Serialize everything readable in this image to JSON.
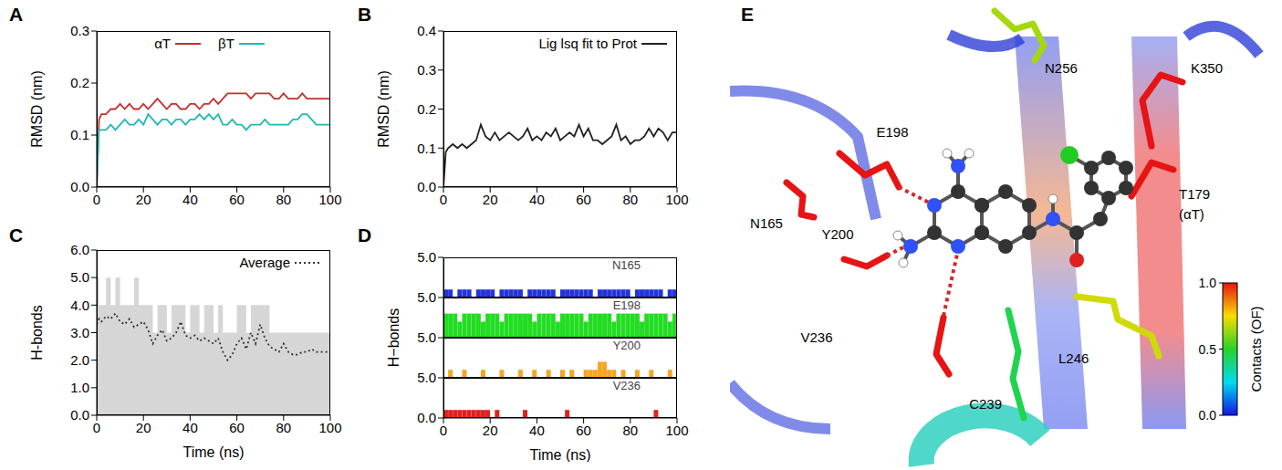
{
  "chart_data": [
    {
      "panel": "A",
      "type": "line",
      "y_label": "RMSD (nm)",
      "legend": "top",
      "x": [
        0,
        1,
        2,
        4,
        6,
        8,
        10,
        12,
        14,
        16,
        18,
        20,
        22,
        24,
        26,
        28,
        30,
        32,
        34,
        36,
        38,
        40,
        42,
        44,
        46,
        48,
        50,
        52,
        54,
        56,
        58,
        60,
        62,
        64,
        66,
        68,
        70,
        72,
        74,
        76,
        78,
        80,
        82,
        84,
        86,
        88,
        90,
        92,
        94,
        96,
        98,
        100
      ],
      "series": [
        {
          "name": "αT",
          "color": "#c62e2e",
          "values": [
            0.0,
            0.13,
            0.14,
            0.14,
            0.15,
            0.15,
            0.16,
            0.15,
            0.16,
            0.15,
            0.15,
            0.16,
            0.15,
            0.16,
            0.17,
            0.16,
            0.15,
            0.16,
            0.16,
            0.15,
            0.15,
            0.16,
            0.16,
            0.15,
            0.16,
            0.16,
            0.17,
            0.16,
            0.17,
            0.18,
            0.18,
            0.18,
            0.18,
            0.18,
            0.17,
            0.18,
            0.18,
            0.18,
            0.18,
            0.17,
            0.17,
            0.18,
            0.17,
            0.17,
            0.17,
            0.18,
            0.17,
            0.17,
            0.17,
            0.17,
            0.17,
            0.17
          ]
        },
        {
          "name": "βT",
          "color": "#1fb8b8",
          "values": [
            0.0,
            0.11,
            0.11,
            0.11,
            0.12,
            0.11,
            0.12,
            0.13,
            0.12,
            0.12,
            0.13,
            0.12,
            0.14,
            0.13,
            0.12,
            0.13,
            0.13,
            0.12,
            0.13,
            0.13,
            0.12,
            0.13,
            0.13,
            0.14,
            0.13,
            0.14,
            0.13,
            0.14,
            0.12,
            0.12,
            0.13,
            0.12,
            0.12,
            0.11,
            0.12,
            0.12,
            0.12,
            0.13,
            0.12,
            0.12,
            0.12,
            0.12,
            0.12,
            0.13,
            0.13,
            0.14,
            0.14,
            0.13,
            0.12,
            0.12,
            0.12,
            0.12
          ]
        }
      ],
      "xlim": [
        0,
        100
      ],
      "xticks": [
        0,
        20,
        40,
        60,
        80,
        100
      ],
      "ylim": [
        0,
        0.3
      ],
      "yticks": [
        {
          "value": 0,
          "label": "0.0"
        },
        {
          "value": 0.1,
          "label": "0.1"
        },
        {
          "value": 0.2,
          "label": "0.2"
        },
        {
          "value": 0.3,
          "label": "0.3"
        }
      ]
    },
    {
      "panel": "B",
      "type": "line",
      "y_label": "RMSD (nm)",
      "legend": "top-right",
      "x": [
        0,
        1,
        2,
        4,
        6,
        8,
        10,
        12,
        14,
        16,
        18,
        20,
        22,
        24,
        26,
        28,
        30,
        32,
        34,
        36,
        38,
        40,
        42,
        44,
        46,
        48,
        50,
        52,
        54,
        56,
        58,
        60,
        62,
        64,
        66,
        68,
        70,
        72,
        74,
        76,
        78,
        80,
        82,
        84,
        86,
        88,
        90,
        92,
        94,
        96,
        98,
        100
      ],
      "series": [
        {
          "name": "Lig lsq fit to Prot",
          "color": "#222222",
          "values": [
            0.0,
            0.09,
            0.1,
            0.11,
            0.1,
            0.11,
            0.1,
            0.11,
            0.12,
            0.16,
            0.13,
            0.12,
            0.14,
            0.12,
            0.13,
            0.14,
            0.13,
            0.12,
            0.13,
            0.15,
            0.12,
            0.13,
            0.12,
            0.14,
            0.13,
            0.15,
            0.12,
            0.13,
            0.14,
            0.13,
            0.16,
            0.13,
            0.15,
            0.12,
            0.12,
            0.11,
            0.12,
            0.13,
            0.16,
            0.12,
            0.13,
            0.11,
            0.12,
            0.12,
            0.13,
            0.15,
            0.13,
            0.15,
            0.14,
            0.12,
            0.14,
            0.14
          ]
        }
      ],
      "xlim": [
        0,
        100
      ],
      "xticks": [
        0,
        20,
        40,
        60,
        80,
        100
      ],
      "ylim": [
        0,
        0.4
      ],
      "yticks": [
        {
          "value": 0,
          "label": "0.0"
        },
        {
          "value": 0.1,
          "label": "0.1"
        },
        {
          "value": 0.2,
          "label": "0.2"
        },
        {
          "value": 0.3,
          "label": "0.3"
        },
        {
          "value": 0.4,
          "label": "0.4"
        }
      ]
    },
    {
      "panel": "C",
      "type": "line",
      "x_label": "Time (ns)",
      "y_label": "H-bonds",
      "legend": "top-right",
      "x": [
        0,
        1,
        2,
        4,
        6,
        8,
        10,
        12,
        14,
        16,
        18,
        20,
        22,
        24,
        26,
        28,
        30,
        32,
        34,
        36,
        38,
        40,
        42,
        44,
        46,
        48,
        50,
        52,
        54,
        56,
        58,
        60,
        62,
        64,
        66,
        68,
        70,
        72,
        74,
        76,
        78,
        80,
        82,
        84,
        86,
        88,
        90,
        92,
        94,
        96,
        98,
        100
      ],
      "series": [
        {
          "type": "area",
          "color": "#d6d6d6",
          "values": [
            5,
            4,
            4,
            5,
            4,
            5,
            4,
            4,
            4,
            5,
            4,
            4,
            4,
            3,
            4,
            4,
            3,
            4,
            4,
            4,
            3,
            4,
            4,
            3,
            4,
            4,
            3,
            4,
            3,
            3,
            3,
            4,
            4,
            3,
            4,
            4,
            4,
            4,
            3,
            3,
            3,
            3,
            3,
            3,
            3,
            3,
            3,
            3,
            3,
            3,
            3,
            3
          ]
        },
        {
          "name": "Average",
          "color": "#333333",
          "line_style": "dotted",
          "values": [
            3.3,
            3.5,
            3.4,
            3.6,
            3.5,
            3.7,
            3.4,
            3.3,
            3.5,
            3.2,
            3.3,
            3.4,
            3.1,
            2.6,
            2.9,
            3.1,
            2.7,
            2.8,
            3.0,
            3.4,
            2.9,
            2.8,
            2.9,
            2.7,
            2.8,
            2.7,
            2.6,
            2.8,
            2.3,
            2.0,
            2.2,
            2.6,
            2.8,
            2.4,
            3.0,
            2.6,
            3.3,
            2.8,
            2.5,
            2.4,
            2.3,
            2.6,
            2.3,
            2.2,
            2.2,
            2.3,
            2.3,
            2.4,
            2.3,
            2.3,
            2.3,
            2.3
          ]
        }
      ],
      "xlim": [
        0,
        100
      ],
      "xticks": [
        0,
        20,
        40,
        60,
        80,
        100
      ],
      "ylim": [
        0,
        6
      ],
      "yticks": [
        {
          "value": 0,
          "label": "0.0"
        },
        {
          "value": 1,
          "label": "1.0"
        },
        {
          "value": 2,
          "label": "2.0"
        },
        {
          "value": 3,
          "label": "3.0"
        },
        {
          "value": 4,
          "label": "4.0"
        },
        {
          "value": 5,
          "label": "5.0"
        },
        {
          "value": 6,
          "label": "6.0"
        }
      ]
    },
    {
      "panel": "D",
      "type": "bar",
      "x_label": "Time (ns)",
      "y_label": "H−bonds",
      "x": [
        1,
        3,
        5,
        7,
        9,
        11,
        13,
        15,
        17,
        19,
        21,
        23,
        25,
        27,
        29,
        31,
        33,
        35,
        37,
        39,
        41,
        43,
        45,
        47,
        49,
        51,
        53,
        55,
        57,
        59,
        61,
        63,
        65,
        67,
        69,
        71,
        73,
        75,
        77,
        79,
        81,
        83,
        85,
        87,
        89,
        91,
        93,
        95,
        97,
        99
      ],
      "series": [
        {
          "name": "N165",
          "color": "#2233dd",
          "values": [
            1,
            1,
            0,
            1,
            1,
            1,
            0,
            1,
            1,
            1,
            1,
            0,
            1,
            1,
            1,
            1,
            1,
            0,
            1,
            1,
            1,
            1,
            1,
            1,
            0,
            1,
            1,
            1,
            1,
            1,
            1,
            1,
            0,
            1,
            1,
            1,
            1,
            1,
            1,
            1,
            0,
            1,
            1,
            1,
            1,
            1,
            1,
            0,
            1,
            1
          ]
        },
        {
          "name": "E198",
          "color": "#22dd22",
          "values": [
            3,
            3,
            3,
            2,
            3,
            3,
            3,
            3,
            2,
            3,
            3,
            3,
            2,
            3,
            3,
            3,
            3,
            3,
            3,
            2,
            3,
            3,
            3,
            3,
            2,
            3,
            3,
            3,
            3,
            3,
            2,
            3,
            3,
            3,
            3,
            3,
            2,
            3,
            3,
            3,
            3,
            3,
            2,
            3,
            3,
            3,
            3,
            3,
            2,
            3
          ]
        },
        {
          "name": "Y200",
          "color": "#f5a623",
          "values": [
            0,
            1,
            0,
            0,
            1,
            0,
            0,
            0,
            1,
            0,
            0,
            0,
            1,
            0,
            0,
            0,
            1,
            0,
            0,
            1,
            0,
            0,
            1,
            0,
            0,
            1,
            0,
            1,
            0,
            0,
            1,
            1,
            1,
            2,
            2,
            1,
            1,
            0,
            1,
            0,
            0,
            1,
            0,
            0,
            1,
            0,
            0,
            0,
            1,
            0
          ]
        },
        {
          "name": "V236",
          "color": "#e02020",
          "values": [
            1,
            1,
            1,
            1,
            1,
            1,
            1,
            1,
            1,
            1,
            0,
            1,
            0,
            0,
            0,
            0,
            0,
            1,
            0,
            0,
            0,
            0,
            0,
            0,
            0,
            0,
            1,
            0,
            0,
            0,
            0,
            0,
            0,
            0,
            0,
            0,
            0,
            0,
            0,
            0,
            0,
            0,
            0,
            0,
            0,
            1,
            0,
            0,
            0,
            0
          ]
        }
      ],
      "xlim": [
        0,
        100
      ],
      "xticks": [
        0,
        20,
        40,
        60,
        80,
        100
      ],
      "ylim": [
        0,
        5
      ],
      "yticks": [
        {
          "value": 0,
          "label": "0.0"
        },
        {
          "value": 5,
          "label": "5.0"
        }
      ]
    }
  ],
  "structure_panel": {
    "panel": "E",
    "residues": [
      {
        "label": "N256",
        "contacts": 0.65
      },
      {
        "label": "K350",
        "contacts": 1.0
      },
      {
        "label": "E198",
        "contacts": 1.0
      },
      {
        "label": "T179",
        "sublabel": "(αT)",
        "contacts": 1.0
      },
      {
        "label": "N165",
        "contacts": 1.0
      },
      {
        "label": "Y200",
        "contacts": 1.0
      },
      {
        "label": "V236",
        "contacts": 1.0
      },
      {
        "label": "C239",
        "contacts": 0.45
      },
      {
        "label": "L246",
        "contacts": 0.7
      }
    ],
    "colorbar": {
      "title": "Contacts (OF)",
      "range": [
        0,
        1
      ],
      "ticks": [
        {
          "value": 0,
          "label": "0.0"
        },
        {
          "value": 0.5,
          "label": "0.5"
        },
        {
          "value": 1,
          "label": "1.0"
        }
      ]
    }
  }
}
